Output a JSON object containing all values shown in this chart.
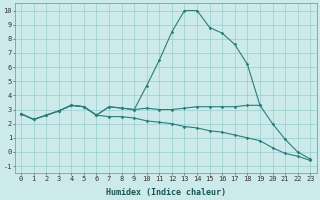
{
  "xlabel": "Humidex (Indice chaleur)",
  "x": [
    0,
    1,
    2,
    3,
    4,
    5,
    6,
    7,
    8,
    9,
    10,
    11,
    12,
    13,
    14,
    15,
    16,
    17,
    18,
    19,
    20,
    21,
    22,
    23
  ],
  "line1": [
    2.7,
    2.3,
    2.6,
    2.9,
    3.3,
    3.2,
    2.6,
    3.2,
    3.1,
    3.0,
    4.7,
    6.5,
    8.5,
    10.0,
    10.0,
    8.8,
    8.4,
    7.6,
    6.2,
    3.3,
    null,
    null,
    null,
    null
  ],
  "line3": [
    2.7,
    2.3,
    2.6,
    2.9,
    3.3,
    3.2,
    2.6,
    3.2,
    3.1,
    3.0,
    3.1,
    3.0,
    3.0,
    3.1,
    3.2,
    3.2,
    3.2,
    3.2,
    3.3,
    3.3,
    2.0,
    0.9,
    0.0,
    -0.5
  ],
  "line4": [
    2.7,
    2.3,
    2.6,
    2.9,
    3.3,
    3.2,
    2.6,
    2.5,
    2.5,
    2.4,
    2.2,
    2.1,
    2.0,
    1.8,
    1.7,
    1.5,
    1.4,
    1.2,
    1.0,
    0.8,
    0.3,
    -0.1,
    -0.3,
    -0.6
  ],
  "bg_color": "#cceaea",
  "grid_color": "#99cccc",
  "line_color": "#2a7d7d",
  "ylim": [
    -1.5,
    10.5
  ],
  "yticks": [
    -1,
    0,
    1,
    2,
    3,
    4,
    5,
    6,
    7,
    8,
    9,
    10
  ],
  "xlim": [
    -0.5,
    23.5
  ],
  "tick_fontsize": 5.0,
  "xlabel_fontsize": 6.0
}
